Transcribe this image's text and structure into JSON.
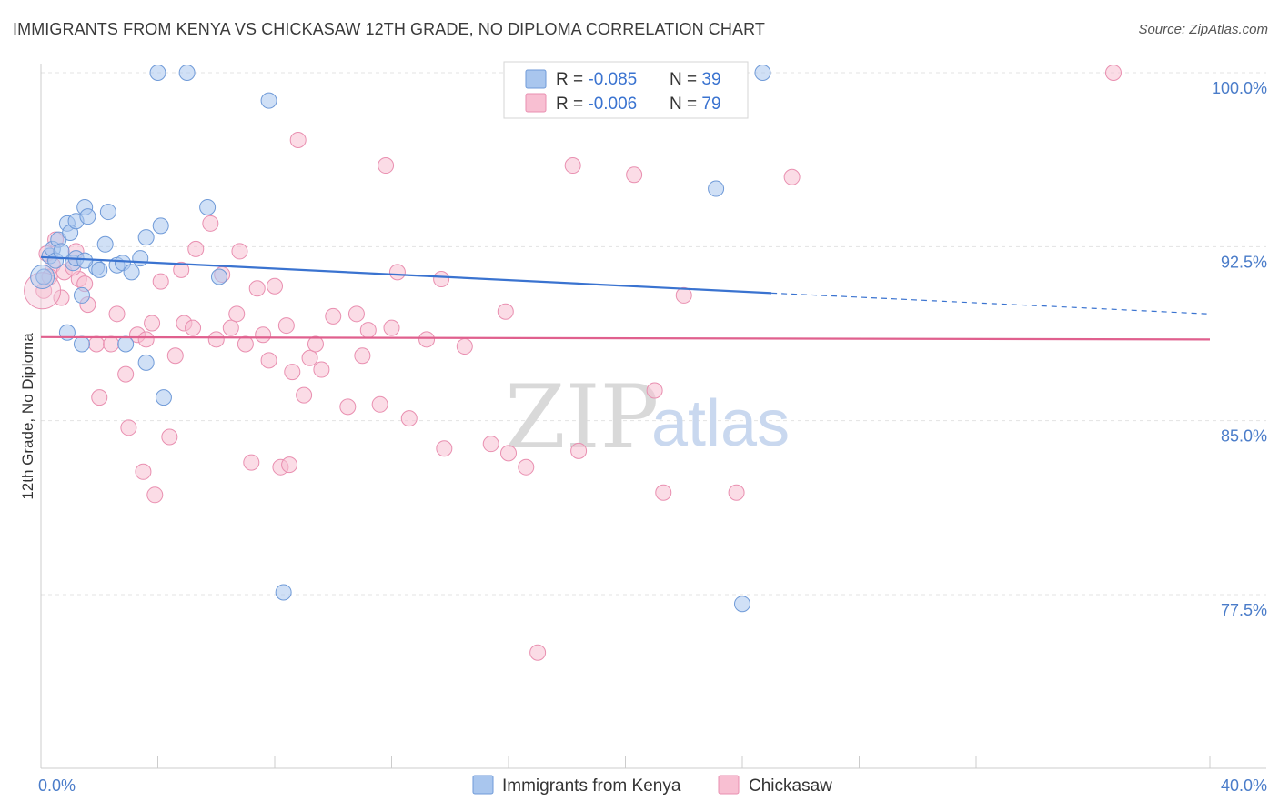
{
  "title": "IMMIGRANTS FROM KENYA VS CHICKASAW 12TH GRADE, NO DIPLOMA CORRELATION CHART",
  "source": "Source: ZipAtlas.com",
  "watermark": {
    "zip": "ZIP",
    "atlas": "atlas"
  },
  "chart_data": {
    "type": "scatter",
    "title": "IMMIGRANTS FROM KENYA VS CHICKASAW 12TH GRADE, NO DIPLOMA CORRELATION CHART",
    "xlabel": "",
    "ylabel": "12th Grade, No Diploma",
    "xlim": [
      0,
      40
    ],
    "ylim": [
      70.8,
      101.2
    ],
    "x_tick_labels": [
      {
        "value": 0,
        "label": "0.0%"
      },
      {
        "value": 40,
        "label": "40.0%"
      }
    ],
    "y_tick_labels": [
      {
        "value": 100,
        "label": "100.0%"
      },
      {
        "value": 92.5,
        "label": "92.5%"
      },
      {
        "value": 85,
        "label": "85.0%"
      },
      {
        "value": 77.5,
        "label": "77.5%"
      }
    ],
    "grid": true,
    "legend_position": "top-center",
    "legend": [
      {
        "r_label": "R = ",
        "r_value": "-0.085",
        "n_label": "N = ",
        "n_value": "39"
      },
      {
        "r_label": "R = ",
        "r_value": "-0.006",
        "n_label": "N = ",
        "n_value": "79"
      }
    ],
    "series": [
      {
        "name": "Immigrants from Kenya",
        "color": "#a9c6ee",
        "stroke": "#6f9ad8",
        "line_color": "#3a73d0",
        "trend": {
          "x0": 0,
          "y0": 92.05,
          "x1": 25.0,
          "y1": 90.5,
          "dash_to_x": 40,
          "dash_to_y": 89.6
        },
        "points": [
          [
            0.1,
            91.2
          ],
          [
            0.3,
            92.1
          ],
          [
            0.4,
            92.4
          ],
          [
            0.5,
            91.9
          ],
          [
            0.6,
            92.8
          ],
          [
            0.7,
            92.3
          ],
          [
            0.9,
            93.5
          ],
          [
            1.0,
            93.1
          ],
          [
            1.1,
            91.8
          ],
          [
            1.2,
            93.6
          ],
          [
            1.4,
            90.4
          ],
          [
            1.5,
            94.2
          ],
          [
            1.6,
            93.8
          ],
          [
            1.9,
            91.6
          ],
          [
            2.0,
            91.5
          ],
          [
            2.2,
            92.6
          ],
          [
            2.3,
            94.0
          ],
          [
            2.6,
            91.7
          ],
          [
            2.8,
            91.8
          ],
          [
            3.4,
            92.0
          ],
          [
            3.6,
            92.9
          ],
          [
            4.1,
            93.4
          ],
          [
            4.2,
            86.0
          ],
          [
            5.7,
            94.2
          ],
          [
            6.1,
            91.2
          ],
          [
            0.9,
            88.8
          ],
          [
            1.4,
            88.3
          ],
          [
            2.9,
            88.3
          ],
          [
            3.6,
            87.5
          ],
          [
            1.2,
            92.0
          ],
          [
            4.0,
            100.0
          ],
          [
            5.0,
            100.0
          ],
          [
            7.8,
            98.8
          ],
          [
            8.3,
            77.6
          ],
          [
            23.1,
            95.0
          ],
          [
            24.7,
            100.0
          ],
          [
            24.0,
            77.1
          ],
          [
            3.1,
            91.4
          ],
          [
            1.5,
            91.9
          ]
        ]
      },
      {
        "name": "Chickasaw",
        "color": "#f8bfd2",
        "stroke": "#e98fb0",
        "line_color": "#e0608e",
        "trend": {
          "x0": 0,
          "y0": 88.6,
          "x1": 40,
          "y1": 88.5
        },
        "points": [
          [
            0.1,
            90.6
          ],
          [
            0.2,
            92.2
          ],
          [
            0.4,
            91.7
          ],
          [
            0.5,
            92.8
          ],
          [
            0.7,
            90.3
          ],
          [
            0.8,
            91.4
          ],
          [
            1.2,
            92.3
          ],
          [
            1.3,
            91.1
          ],
          [
            1.5,
            90.9
          ],
          [
            1.6,
            90.0
          ],
          [
            1.9,
            88.3
          ],
          [
            2.0,
            86.0
          ],
          [
            2.4,
            88.3
          ],
          [
            2.6,
            89.6
          ],
          [
            2.9,
            87.0
          ],
          [
            3.0,
            84.7
          ],
          [
            3.3,
            88.7
          ],
          [
            3.5,
            82.8
          ],
          [
            3.6,
            88.5
          ],
          [
            3.8,
            89.2
          ],
          [
            3.9,
            81.8
          ],
          [
            4.1,
            91.0
          ],
          [
            4.4,
            84.3
          ],
          [
            4.6,
            87.8
          ],
          [
            4.8,
            91.5
          ],
          [
            4.9,
            89.2
          ],
          [
            5.2,
            89.0
          ],
          [
            5.3,
            92.4
          ],
          [
            5.8,
            93.5
          ],
          [
            6.0,
            88.5
          ],
          [
            6.2,
            91.3
          ],
          [
            6.5,
            89.0
          ],
          [
            6.7,
            89.6
          ],
          [
            6.8,
            92.3
          ],
          [
            7.0,
            88.3
          ],
          [
            7.2,
            83.2
          ],
          [
            7.4,
            90.7
          ],
          [
            7.6,
            88.7
          ],
          [
            7.8,
            87.6
          ],
          [
            8.0,
            90.8
          ],
          [
            8.2,
            83.0
          ],
          [
            8.4,
            89.1
          ],
          [
            8.5,
            83.1
          ],
          [
            8.6,
            87.1
          ],
          [
            8.8,
            97.1
          ],
          [
            9.0,
            86.1
          ],
          [
            9.2,
            87.7
          ],
          [
            9.4,
            88.3
          ],
          [
            9.6,
            87.2
          ],
          [
            10.0,
            89.5
          ],
          [
            10.5,
            85.6
          ],
          [
            10.8,
            89.6
          ],
          [
            11.0,
            87.8
          ],
          [
            11.2,
            88.9
          ],
          [
            11.6,
            85.7
          ],
          [
            11.8,
            96.0
          ],
          [
            12.0,
            89.0
          ],
          [
            12.2,
            91.4
          ],
          [
            12.6,
            85.1
          ],
          [
            13.2,
            88.5
          ],
          [
            13.7,
            91.1
          ],
          [
            13.8,
            83.8
          ],
          [
            14.5,
            88.2
          ],
          [
            15.4,
            84.0
          ],
          [
            15.9,
            89.7
          ],
          [
            16.0,
            83.6
          ],
          [
            16.6,
            83.0
          ],
          [
            17.0,
            75.0
          ],
          [
            18.2,
            96.0
          ],
          [
            18.4,
            83.7
          ],
          [
            20.3,
            95.6
          ],
          [
            21.0,
            86.3
          ],
          [
            21.3,
            81.9
          ],
          [
            22.0,
            90.4
          ],
          [
            23.8,
            81.9
          ],
          [
            25.7,
            95.5
          ],
          [
            36.7,
            100.0
          ],
          [
            1.1,
            91.6
          ],
          [
            0.3,
            91.2
          ]
        ]
      }
    ]
  }
}
